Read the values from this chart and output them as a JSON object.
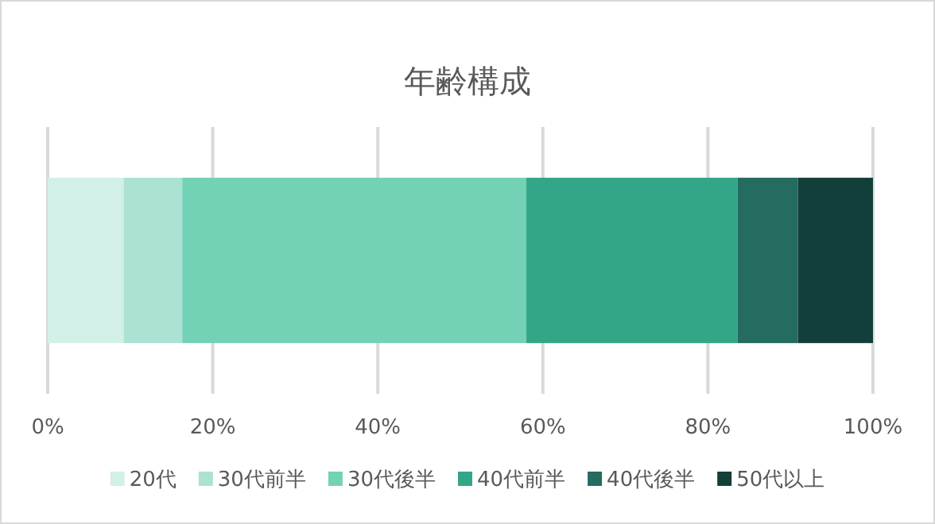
{
  "chart_data": {
    "type": "bar",
    "orientation": "horizontal",
    "stacked": true,
    "title": "年齢構成",
    "categories": [
      null
    ],
    "series": [
      {
        "name": "20代",
        "color": "#d3f0e8",
        "values": [
          9.2
        ]
      },
      {
        "name": "30代前半",
        "color": "#abe2d3",
        "values": [
          7.1
        ]
      },
      {
        "name": "30代後半",
        "color": "#73d1b6",
        "values": [
          41.7
        ]
      },
      {
        "name": "40代前半",
        "color": "#33a688",
        "values": [
          25.6
        ]
      },
      {
        "name": "40代後半",
        "color": "#246b60",
        "values": [
          7.3
        ]
      },
      {
        "name": "50代以上",
        "color": "#133f3a",
        "values": [
          9.1
        ]
      }
    ],
    "xlim": [
      0,
      100
    ],
    "xticks": [
      {
        "value": 0,
        "label": "0%"
      },
      {
        "value": 20,
        "label": "20%"
      },
      {
        "value": 40,
        "label": "40%"
      },
      {
        "value": 60,
        "label": "60%"
      },
      {
        "value": 80,
        "label": "80%"
      },
      {
        "value": 100,
        "label": "100%"
      }
    ],
    "grid": "x",
    "legend": "bottom"
  }
}
